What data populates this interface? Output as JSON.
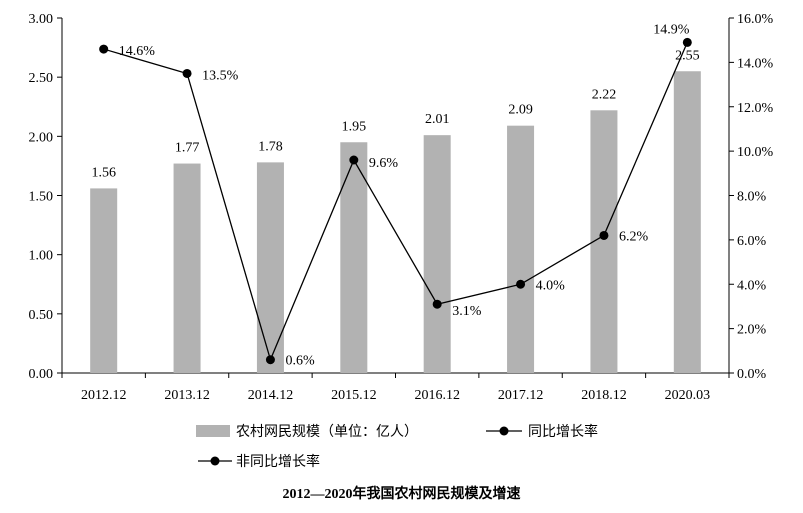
{
  "chart_data": {
    "type": "bar+line",
    "title": "2012—2020年我国农村网民规模及增速",
    "categories": [
      "2012.12",
      "2013.12",
      "2014.12",
      "2015.12",
      "2016.12",
      "2017.12",
      "2018.12",
      "2020.03"
    ],
    "series": [
      {
        "name": "农村网民规模（单位：亿人）",
        "type": "bar",
        "axis": "left",
        "values": [
          1.56,
          1.77,
          1.78,
          1.95,
          2.01,
          2.09,
          2.22,
          2.55
        ],
        "labels": [
          "1.56",
          "1.77",
          "1.78",
          "1.95",
          "2.01",
          "2.09",
          "2.22",
          "2.55"
        ],
        "color": "#b2b2b2"
      },
      {
        "name": "同比增长率",
        "type": "line",
        "axis": "right",
        "values": [
          14.6,
          13.5,
          0.6,
          9.6,
          3.1,
          4.0,
          6.2,
          14.9
        ],
        "labels": [
          "14.6%",
          "13.5%",
          "0.6%",
          "9.6%",
          "3.1%",
          "4.0%",
          "6.2%",
          "14.9%"
        ],
        "color": "#000000"
      }
    ],
    "legend_extra": "非同比增长率",
    "left_axis": {
      "ylim": [
        0,
        3
      ],
      "ticks": [
        "0.00",
        "0.50",
        "1.00",
        "1.50",
        "2.00",
        "2.50",
        "3.00"
      ]
    },
    "right_axis": {
      "ylim": [
        0,
        16
      ],
      "ticks": [
        "0.0%",
        "2.0%",
        "4.0%",
        "6.0%",
        "8.0%",
        "10.0%",
        "12.0%",
        "14.0%",
        "16.0%"
      ]
    },
    "grid": false,
    "legend_position": "bottom"
  }
}
